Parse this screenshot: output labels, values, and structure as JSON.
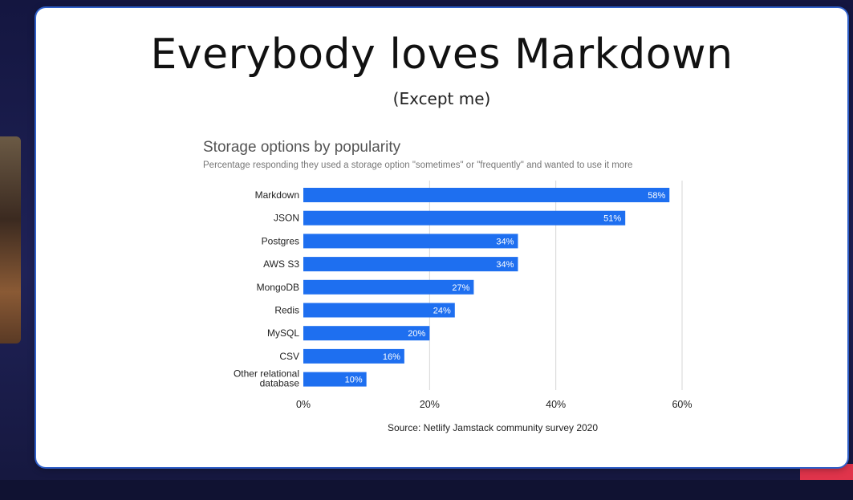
{
  "slide": {
    "title": "Everybody loves Markdown",
    "subtitle": "(Except me)"
  },
  "colors": {
    "bar": "#1e6ff0",
    "grid": "#d6d6d6",
    "slide_bg": "#ffffff",
    "page_bg": "#1a1d4a",
    "accent_red": "#e0344b"
  },
  "chart_data": {
    "type": "bar",
    "orientation": "horizontal",
    "title": "Storage options by popularity",
    "subtitle": "Percentage responding they used a storage option \"sometimes\" or \"frequently\" and wanted to use it more",
    "categories": [
      "Markdown",
      "JSON",
      "Postgres",
      "AWS S3",
      "MongoDB",
      "Redis",
      "MySQL",
      "CSV",
      "Other relational database"
    ],
    "category_lines": [
      [
        "Markdown"
      ],
      [
        "JSON"
      ],
      [
        "Postgres"
      ],
      [
        "AWS S3"
      ],
      [
        "MongoDB"
      ],
      [
        "Redis"
      ],
      [
        "MySQL"
      ],
      [
        "CSV"
      ],
      [
        "Other relational",
        "database"
      ]
    ],
    "values": [
      58,
      51,
      34,
      34,
      27,
      24,
      20,
      16,
      10
    ],
    "value_labels": [
      "58%",
      "51%",
      "34%",
      "34%",
      "27%",
      "24%",
      "20%",
      "16%",
      "10%"
    ],
    "xlim": [
      0,
      60
    ],
    "xticks": [
      0,
      20,
      40,
      60
    ],
    "xtick_labels": [
      "0%",
      "20%",
      "40%",
      "60%"
    ],
    "grid": true,
    "source": "Source: Netlify Jamstack community survey 2020"
  }
}
